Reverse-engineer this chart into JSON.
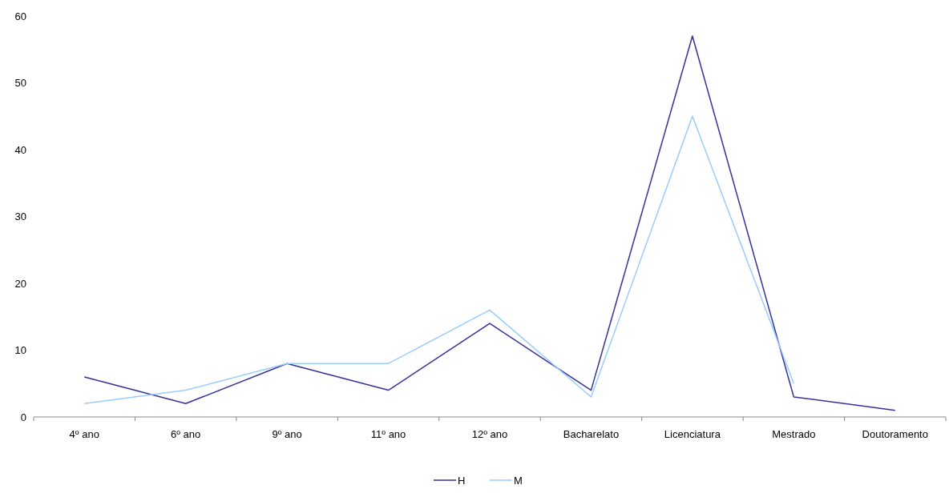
{
  "chart_data": {
    "type": "line",
    "categories": [
      "4º ano",
      "6º ano",
      "9º ano",
      "11º ano",
      "12º ano",
      "Bacharelato",
      "Licenciatura",
      "Mestrado",
      "Doutoramento"
    ],
    "series": [
      {
        "name": "H",
        "color": "#333399",
        "values": [
          6,
          2,
          8,
          4,
          14,
          4,
          57,
          3,
          1
        ]
      },
      {
        "name": "M",
        "color": "#99ccff",
        "values": [
          2,
          4,
          8,
          8,
          16,
          3,
          45,
          5,
          null
        ]
      }
    ],
    "ylim": [
      0,
      60
    ],
    "yticks": [
      0,
      10,
      20,
      30,
      40,
      50,
      60
    ],
    "grid": false,
    "legend": "bottom",
    "marker": "none",
    "line_style": "solid"
  }
}
